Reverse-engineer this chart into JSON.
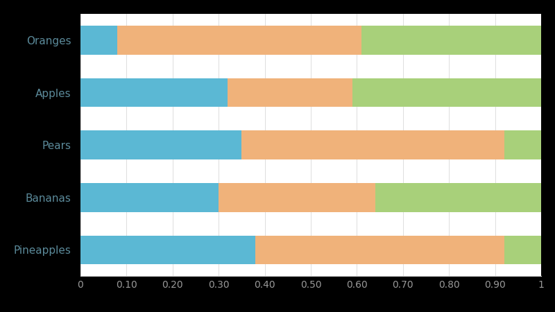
{
  "categories": [
    "Pineapples",
    "Bananas",
    "Pears",
    "Apples",
    "Oranges"
  ],
  "series": {
    "blue": [
      0.38,
      0.3,
      0.35,
      0.32,
      0.08
    ],
    "orange": [
      0.54,
      0.34,
      0.57,
      0.27,
      0.53
    ],
    "green": [
      0.08,
      0.36,
      0.08,
      0.41,
      0.39
    ]
  },
  "colors": {
    "blue": "#5BB8D4",
    "orange": "#F0B27A",
    "green": "#A8D07A"
  },
  "xlim": [
    0,
    1
  ],
  "xticks": [
    0,
    0.1,
    0.2,
    0.3,
    0.4,
    0.5,
    0.6,
    0.7,
    0.8,
    0.9,
    1.0
  ],
  "xtick_labels": [
    "0",
    "0.10",
    "0.20",
    "0.30",
    "0.40",
    "0.50",
    "0.60",
    "0.70",
    "0.80",
    "0.90",
    "1"
  ],
  "background_color": "#FFFFFF",
  "outer_background": "#000000",
  "bar_height": 0.55,
  "label_fontsize": 11,
  "tick_fontsize": 10,
  "label_color": "#5B8A9A",
  "tick_color": "#999999",
  "grid_color": "#DDDDDD",
  "spine_color": "#CCCCCC"
}
